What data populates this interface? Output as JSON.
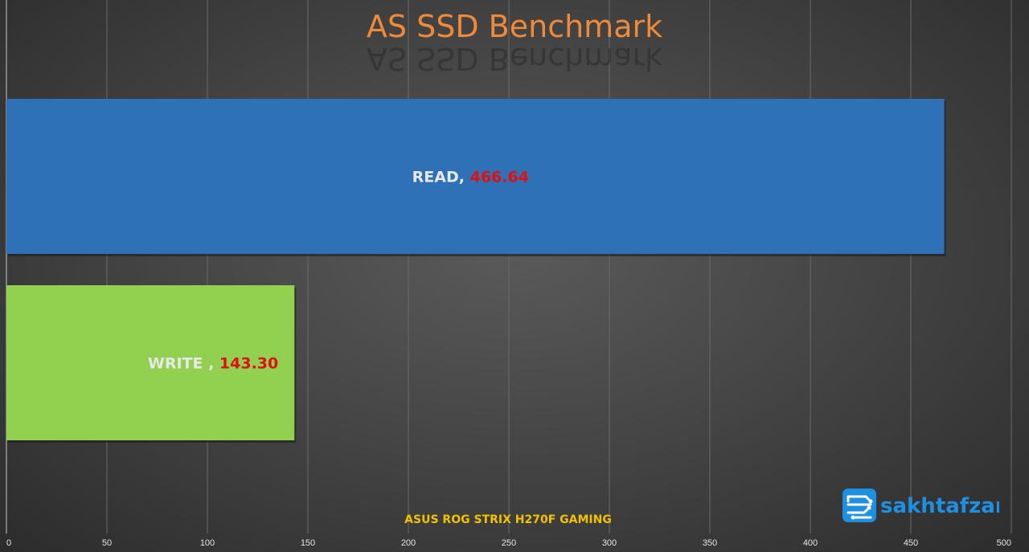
{
  "chart_data": {
    "type": "bar",
    "orientation": "horizontal",
    "title": "AS SSD Benchmark",
    "caption": "ASUS ROG STRIX H270F GAMING",
    "xlim": [
      0,
      500
    ],
    "x_ticks": [
      0,
      50,
      100,
      150,
      200,
      250,
      300,
      350,
      400,
      450,
      500
    ],
    "grid": "vertical",
    "legend": "none",
    "categories": [
      "READ",
      "WRITE"
    ],
    "values": [
      466.64,
      143.3
    ],
    "value_labels": [
      "466.64",
      "143.30"
    ],
    "label_names": [
      "READ,",
      "WRITE ,"
    ],
    "colors": [
      "#2e71b6",
      "#92d050"
    ],
    "label_color": "#e8e8e8",
    "value_color": "#e01010",
    "title_color": "#ef8a3a",
    "caption_color": "#f2c200"
  },
  "logo": {
    "text": "sakhtafzar",
    "icon": "circuit-board-icon",
    "color": "#1e90e0"
  }
}
